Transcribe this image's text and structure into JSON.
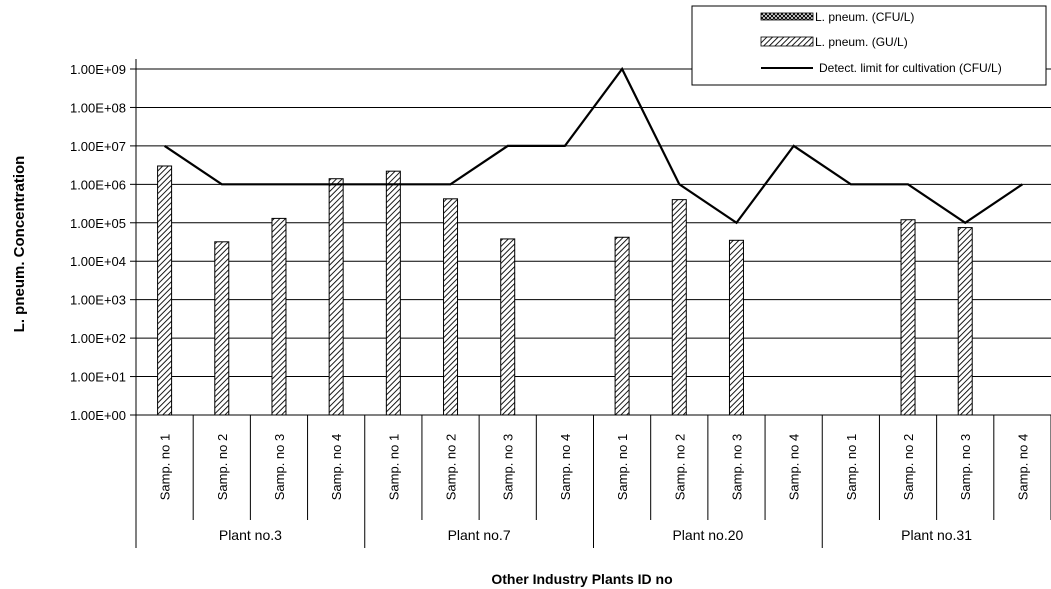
{
  "chart_data": {
    "type": "bar",
    "ylabel": "L. pneum. Concentration",
    "xlabel": "Other Industry Plants ID no",
    "y_scale": "log",
    "ylim": [
      1,
      1000000000
    ],
    "y_tick_values": [
      1,
      10,
      100,
      1000,
      10000,
      100000,
      1000000,
      10000000,
      100000000,
      1000000000
    ],
    "y_tick_labels": [
      "1.00E+00",
      "1.00E+01",
      "1.00E+02",
      "1.00E+03",
      "1.00E+04",
      "1.00E+05",
      "1.00E+06",
      "1.00E+07",
      "1.00E+08",
      "1.00E+09"
    ],
    "grid": true,
    "legend_position": "top-right",
    "categories": [
      "Samp. no 1",
      "Samp. no 2",
      "Samp. no 3",
      "Samp. no 4",
      "Samp. no 1",
      "Samp. no 2",
      "Samp. no 3",
      "Samp. no 4",
      "Samp. no 1",
      "Samp. no 2",
      "Samp. no 3",
      "Samp. no 4",
      "Samp. no 1",
      "Samp. no 2",
      "Samp. no 3",
      "Samp. no 4"
    ],
    "groups": [
      {
        "label": "Plant no.3",
        "size": 4
      },
      {
        "label": "Plant no.7",
        "size": 4
      },
      {
        "label": "Plant no.20",
        "size": 4
      },
      {
        "label": "Plant no.31",
        "size": 4
      }
    ],
    "series": [
      {
        "name": "L. pneum. (CFU/L)",
        "kind": "bar",
        "pattern": "crosshatch",
        "values": [
          null,
          null,
          null,
          null,
          null,
          null,
          null,
          null,
          null,
          null,
          null,
          null,
          null,
          null,
          null,
          null
        ]
      },
      {
        "name": "L. pneum. (GU/L)",
        "kind": "bar",
        "pattern": "diagonal-hatch",
        "values": [
          3000000,
          32000,
          130000,
          1400000,
          2200000,
          420000,
          38000,
          null,
          42000,
          400000,
          35000,
          null,
          null,
          120000,
          75000,
          null
        ]
      },
      {
        "name": "Detect. limit for cultivation (CFU/L)",
        "kind": "line",
        "values": [
          10000000,
          1000000,
          1000000,
          1000000,
          1000000,
          1000000,
          10000000,
          10000000,
          1000000000,
          1000000,
          100000,
          10000000,
          1000000,
          1000000,
          100000,
          1000000
        ]
      }
    ]
  }
}
